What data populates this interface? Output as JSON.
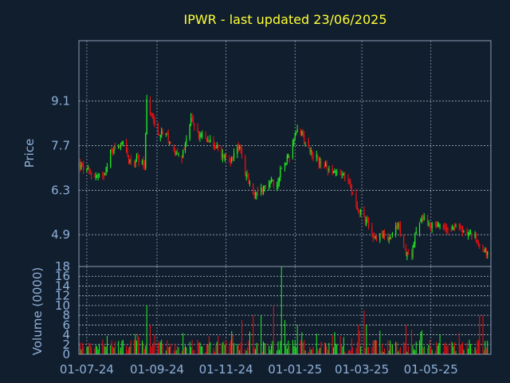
{
  "colors": {
    "background": "#111e2e",
    "up": "#22ee22",
    "down": "#ee1111",
    "title": "#ffff33",
    "axis_text": "#8fb0d8"
  },
  "chart_data": [
    {
      "type": "candlestick",
      "title": "IPWR - last updated 23/06/2025",
      "ylabel": "Price",
      "ylim": [
        3.9,
        11.0
      ],
      "yticks": [
        4.9,
        6.3,
        7.7,
        9.1
      ],
      "grid": true,
      "x_range": [
        "2024-06-24",
        "2025-06-23"
      ],
      "xticks": [
        "01-07-24",
        "01-09-24",
        "01-11-24",
        "01-01-25",
        "01-03-25",
        "01-05-25"
      ],
      "xtick_dates": [
        "2024-07-01",
        "2024-09-01",
        "2024-11-01",
        "2025-01-01",
        "2025-03-01",
        "2025-05-01"
      ],
      "close_anchors": [
        [
          "2024-06-24",
          7.1
        ],
        [
          "2024-07-05",
          6.8
        ],
        [
          "2024-07-15",
          6.7
        ],
        [
          "2024-07-22",
          7.5
        ],
        [
          "2024-08-01",
          7.8
        ],
        [
          "2024-08-08",
          7.2
        ],
        [
          "2024-08-15",
          7.3
        ],
        [
          "2024-08-21",
          7.1
        ],
        [
          "2024-08-23",
          9.2
        ],
        [
          "2024-08-27",
          8.7
        ],
        [
          "2024-09-02",
          8.1
        ],
        [
          "2024-09-09",
          8.0
        ],
        [
          "2024-09-16",
          7.5
        ],
        [
          "2024-09-23",
          7.3
        ],
        [
          "2024-09-27",
          7.9
        ],
        [
          "2024-10-01",
          8.6
        ],
        [
          "2024-10-08",
          8.0
        ],
        [
          "2024-10-15",
          7.9
        ],
        [
          "2024-10-22",
          7.7
        ],
        [
          "2024-10-29",
          7.4
        ],
        [
          "2024-11-05",
          7.3
        ],
        [
          "2024-11-11",
          7.7
        ],
        [
          "2024-11-15",
          7.4
        ],
        [
          "2024-11-19",
          6.7
        ],
        [
          "2024-11-25",
          6.2
        ],
        [
          "2024-12-02",
          6.3
        ],
        [
          "2024-12-09",
          6.6
        ],
        [
          "2024-12-16",
          6.4
        ],
        [
          "2024-12-20",
          7.1
        ],
        [
          "2024-12-27",
          7.4
        ],
        [
          "2025-01-03",
          8.3
        ],
        [
          "2025-01-08",
          8.0
        ],
        [
          "2025-01-15",
          7.5
        ],
        [
          "2025-01-22",
          7.2
        ],
        [
          "2025-01-29",
          7.0
        ],
        [
          "2025-02-05",
          6.9
        ],
        [
          "2025-02-12",
          6.8
        ],
        [
          "2025-02-19",
          6.4
        ],
        [
          "2025-02-26",
          5.7
        ],
        [
          "2025-03-05",
          5.3
        ],
        [
          "2025-03-12",
          4.8
        ],
        [
          "2025-03-19",
          4.9
        ],
        [
          "2025-03-26",
          4.8
        ],
        [
          "2025-04-02",
          5.2
        ],
        [
          "2025-04-09",
          4.3
        ],
        [
          "2025-04-14",
          4.3
        ],
        [
          "2025-04-18",
          5.1
        ],
        [
          "2025-04-25",
          5.4
        ],
        [
          "2025-05-02",
          5.2
        ],
        [
          "2025-05-09",
          5.1
        ],
        [
          "2025-05-16",
          5.1
        ],
        [
          "2025-05-23",
          5.2
        ],
        [
          "2025-05-30",
          5.0
        ],
        [
          "2025-06-06",
          4.9
        ],
        [
          "2025-06-13",
          4.6
        ],
        [
          "2025-06-18",
          4.4
        ],
        [
          "2025-06-23",
          4.2
        ]
      ]
    },
    {
      "type": "bar",
      "ylabel": "Volume (0000)",
      "ylim": [
        0,
        18
      ],
      "yticks": [
        0,
        2,
        4,
        6,
        8,
        10,
        12,
        14,
        16,
        18
      ],
      "grid": true,
      "x_range": [
        "2024-06-24",
        "2025-06-23"
      ],
      "volume_spikes": [
        [
          "2024-08-23",
          10
        ],
        [
          "2024-08-26",
          6
        ],
        [
          "2024-11-15",
          7
        ],
        [
          "2024-11-25",
          8
        ],
        [
          "2024-12-02",
          8
        ],
        [
          "2024-12-13",
          10
        ],
        [
          "2024-12-20",
          18
        ],
        [
          "2024-12-23",
          7
        ],
        [
          "2025-01-03",
          6
        ],
        [
          "2025-02-26",
          6
        ],
        [
          "2025-03-03",
          9
        ],
        [
          "2025-03-05",
          6
        ],
        [
          "2025-04-09",
          6
        ],
        [
          "2025-04-14",
          5
        ],
        [
          "2025-06-13",
          8
        ],
        [
          "2025-06-16",
          8
        ]
      ],
      "typical_volume": 1.6
    }
  ]
}
